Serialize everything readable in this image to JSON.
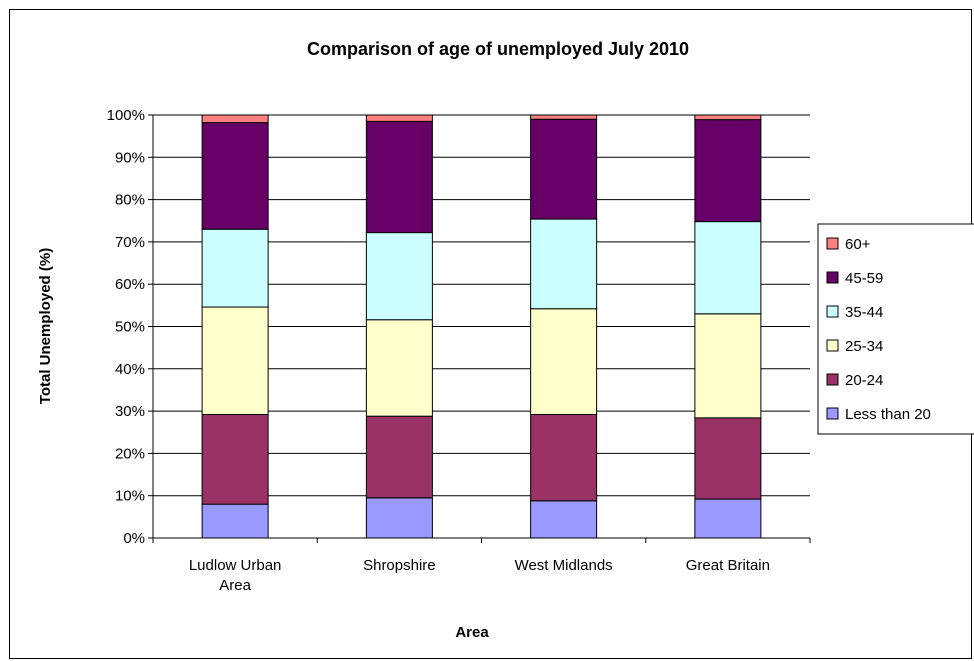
{
  "chart_data": {
    "type": "bar",
    "stacked": true,
    "percent_stacked": true,
    "title": "Comparison of age of unemployed July 2010",
    "xlabel": "Area",
    "ylabel": "Total Unemployed (%)",
    "ylim": [
      0,
      100
    ],
    "yticks": [
      "0%",
      "10%",
      "20%",
      "30%",
      "40%",
      "50%",
      "60%",
      "70%",
      "80%",
      "90%",
      "100%"
    ],
    "categories": [
      [
        "Ludlow Urban",
        "Area"
      ],
      [
        "Shropshire"
      ],
      [
        "West Midlands"
      ],
      [
        "Great Britain"
      ]
    ],
    "grid": true,
    "legend_position": "right",
    "series": [
      {
        "name": "Less than 20",
        "color": "#9999ff",
        "values": [
          8.0,
          9.5,
          8.8,
          9.2
        ]
      },
      {
        "name": "20-24",
        "color": "#993366",
        "values": [
          21.2,
          19.3,
          20.4,
          19.2
        ]
      },
      {
        "name": "25-34",
        "color": "#ffffcc",
        "values": [
          25.4,
          22.8,
          25.0,
          24.6
        ]
      },
      {
        "name": "35-44",
        "color": "#ccffff",
        "values": [
          18.4,
          20.6,
          21.2,
          21.8
        ]
      },
      {
        "name": "45-59",
        "color": "#660066",
        "values": [
          25.2,
          26.3,
          23.6,
          24.1
        ]
      },
      {
        "name": "60+",
        "color": "#ff8080",
        "values": [
          1.8,
          1.5,
          1.0,
          1.1
        ]
      }
    ]
  }
}
